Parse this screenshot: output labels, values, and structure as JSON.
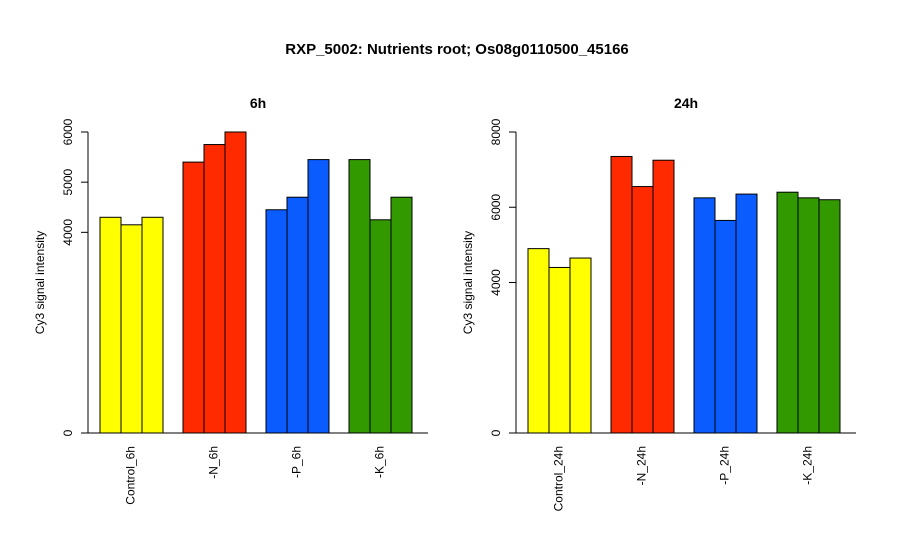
{
  "title": "RXP_5002: Nutrients root; Os08g0110500_45166",
  "chart_data": [
    {
      "type": "bar",
      "title": "6h",
      "ylabel": "Cy3 signal intensity",
      "ylim": [
        0,
        6000
      ],
      "yticks": [
        0,
        4000,
        5000,
        6000
      ],
      "groups": [
        {
          "label": "Control_6h",
          "color": "#ffff00",
          "values": [
            4300,
            4150,
            4300
          ]
        },
        {
          "label": "-N_6h",
          "color": "#ff2a00",
          "values": [
            5400,
            5750,
            6000
          ]
        },
        {
          "label": "-P_6h",
          "color": "#0a5cff",
          "values": [
            4450,
            4700,
            5450
          ]
        },
        {
          "label": "-K_6h",
          "color": "#339900",
          "values": [
            5450,
            4250,
            4700
          ]
        }
      ]
    },
    {
      "type": "bar",
      "title": "24h",
      "ylabel": "Cy3 signal intensity",
      "ylim": [
        0,
        8000
      ],
      "yticks": [
        0,
        4000,
        6000,
        8000
      ],
      "groups": [
        {
          "label": "Control_24h",
          "color": "#ffff00",
          "values": [
            4900,
            4400,
            4650
          ]
        },
        {
          "label": "-N_24h",
          "color": "#ff2a00",
          "values": [
            7350,
            6550,
            7250
          ]
        },
        {
          "label": "-P_24h",
          "color": "#0a5cff",
          "values": [
            6250,
            5650,
            6350
          ]
        },
        {
          "label": "-K_24h",
          "color": "#339900",
          "values": [
            6400,
            6250,
            6200
          ]
        }
      ]
    }
  ]
}
